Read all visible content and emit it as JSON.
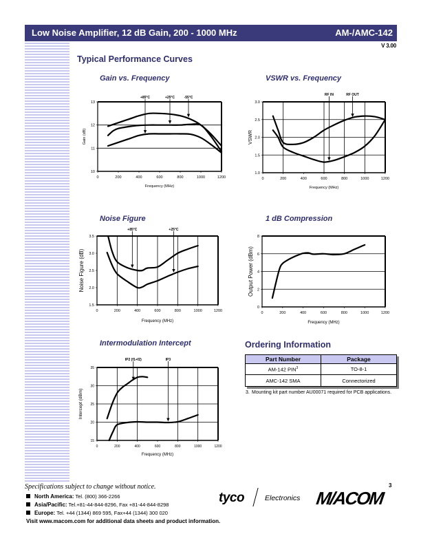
{
  "header": {
    "title": "Low Noise Amplifier, 12 dB Gain, 200 - 1000 MHz",
    "part": "AM-/AMC-142",
    "version": "V 3.00"
  },
  "section_title": "Typical Performance Curves",
  "colors": {
    "header_bg": "#3a3a7a",
    "title_text": "#2e2e6e",
    "stripe": "#c8c8f0",
    "table_header_bg": "#c8c8f0"
  },
  "chart_data": [
    {
      "id": "gain",
      "type": "line",
      "title": "Gain vs. Frequency",
      "xlabel": "Frequency (MHz)",
      "ylabel": "Gain (dB)",
      "xlim": [
        0,
        1200
      ],
      "ylim": [
        10,
        13
      ],
      "xticks": [
        "0",
        "200",
        "400",
        "600",
        "800",
        "1000",
        "1200"
      ],
      "yticks": [
        "10",
        "11",
        "12",
        "13"
      ],
      "grid_h": [
        11,
        12
      ],
      "grid_v": [],
      "series": [
        {
          "name": "-55°C",
          "x": [
            100,
            200,
            300,
            400,
            500,
            600,
            700,
            800,
            900,
            1000,
            1100,
            1200
          ],
          "y": [
            11.95,
            12.1,
            12.25,
            12.4,
            12.5,
            12.5,
            12.47,
            12.4,
            12.25,
            12.0,
            11.6,
            11.1
          ]
        },
        {
          "name": "+25°C",
          "x": [
            100,
            150,
            200,
            300,
            400,
            500,
            600,
            700,
            800,
            900,
            1000,
            1100,
            1200
          ],
          "y": [
            11.55,
            11.75,
            11.85,
            11.93,
            11.98,
            12.0,
            12.0,
            12.0,
            12.0,
            12.03,
            12.0,
            11.5,
            10.85
          ]
        },
        {
          "name": "+85°C",
          "x": [
            100,
            200,
            300,
            400,
            500,
            600,
            700,
            800,
            900,
            1000,
            1100,
            1200
          ],
          "y": [
            11.1,
            11.25,
            11.4,
            11.55,
            11.62,
            11.62,
            11.62,
            11.62,
            11.6,
            11.45,
            11.15,
            10.8
          ]
        }
      ],
      "annotations": [
        {
          "text": "+85°C",
          "x": 460,
          "y": 11.6
        },
        {
          "text": "+25°C",
          "x": 700,
          "y": 12.02
        },
        {
          "text": "-55°C",
          "x": 880,
          "y": 12.3
        }
      ]
    },
    {
      "id": "vswr",
      "type": "line",
      "title": "VSWR vs. Frequency",
      "xlabel": "Frequency (MHz)",
      "ylabel": "VSWR",
      "xlim": [
        0,
        1200
      ],
      "ylim": [
        1.0,
        3.0
      ],
      "xticks": [
        "0",
        "200",
        "400",
        "600",
        "800",
        "1000",
        "1200"
      ],
      "yticks": [
        "1.0",
        "1.5",
        "2.0",
        "2.5",
        "3.0"
      ],
      "grid_h": [
        1.5,
        2.0,
        2.5
      ],
      "grid_v": [
        200,
        600,
        800,
        1000
      ],
      "series": [
        {
          "name": "RF OUT",
          "x": [
            100,
            150,
            200,
            300,
            400,
            500,
            600,
            700,
            800,
            900,
            1000,
            1100,
            1200
          ],
          "y": [
            2.6,
            2.2,
            1.85,
            1.8,
            1.85,
            2.0,
            2.2,
            2.35,
            2.48,
            2.57,
            2.6,
            2.58,
            2.5
          ]
        },
        {
          "name": "RF IN",
          "x": [
            100,
            150,
            200,
            300,
            400,
            500,
            600,
            700,
            800,
            900,
            1000,
            1100,
            1200
          ],
          "y": [
            2.2,
            2.0,
            1.72,
            1.57,
            1.47,
            1.37,
            1.3,
            1.35,
            1.45,
            1.57,
            1.75,
            2.05,
            2.5
          ]
        }
      ],
      "annotations": [
        {
          "text": "RF IN",
          "x": 650,
          "y": 1.32
        },
        {
          "text": "RF OUT",
          "x": 880,
          "y": 2.55
        }
      ]
    },
    {
      "id": "nf",
      "type": "line",
      "title": "Noise Figure",
      "xlabel": "Frequency (MHz)",
      "ylabel": "Noise Figure (dB)",
      "xlim": [
        0,
        1200
      ],
      "ylim": [
        1.5,
        3.5
      ],
      "xticks": [
        "0",
        "200",
        "400",
        "600",
        "800",
        "1000",
        "1200"
      ],
      "yticks": [
        "1.5",
        "2.0",
        "2.5",
        "3.0",
        "3.5"
      ],
      "grid_h": [],
      "grid_v": [
        200,
        400,
        600,
        800,
        1000
      ],
      "series": [
        {
          "name": "+85°C",
          "x": [
            110,
            150,
            200,
            300,
            400,
            450,
            500,
            600,
            700,
            800,
            900,
            1000
          ],
          "y": [
            3.5,
            3.05,
            2.75,
            2.58,
            2.5,
            2.5,
            2.57,
            2.6,
            2.8,
            3.0,
            3.12,
            3.22
          ]
        },
        {
          "name": "+25°C",
          "x": [
            100,
            150,
            200,
            300,
            400,
            450,
            500,
            600,
            700,
            800,
            900,
            1000
          ],
          "y": [
            3.02,
            2.65,
            2.4,
            2.18,
            2.0,
            2.02,
            2.1,
            2.2,
            2.33,
            2.45,
            2.55,
            2.62
          ]
        }
      ],
      "annotations": [
        {
          "text": "+85°C",
          "x": 350,
          "y": 2.55
        },
        {
          "text": "+25°C",
          "x": 760,
          "y": 2.42
        }
      ]
    },
    {
      "id": "p1db",
      "type": "line",
      "title": "1 dB Compression",
      "xlabel": "Frequency (MHz)",
      "ylabel": "Output Power (dBm)",
      "xlim": [
        0,
        1200
      ],
      "ylim": [
        0,
        8
      ],
      "xticks": [
        "0",
        "200",
        "400",
        "600",
        "800",
        "1000",
        "1200"
      ],
      "yticks": [
        "0",
        "2",
        "4",
        "6",
        "8"
      ],
      "grid_h": [
        2,
        4,
        6
      ],
      "grid_v": [],
      "series": [
        {
          "name": "P1dB",
          "x": [
            100,
            130,
            170,
            200,
            250,
            300,
            350,
            400,
            450,
            500,
            600,
            700,
            800,
            900,
            1000
          ],
          "y": [
            1.0,
            2.5,
            4.3,
            4.9,
            5.3,
            5.6,
            5.85,
            6.05,
            6.1,
            5.95,
            6.0,
            5.9,
            6.0,
            6.5,
            7.0
          ]
        }
      ],
      "annotations": []
    },
    {
      "id": "ip",
      "type": "line",
      "title": "Intermodulation Intercept",
      "xlabel": "Frequency (MHz)",
      "ylabel": "Intercept (dBm)",
      "xlim": [
        0,
        1200
      ],
      "ylim": [
        15,
        35
      ],
      "xticks": [
        "0",
        "200",
        "400",
        "600",
        "800",
        "1000",
        "1200"
      ],
      "yticks": [
        "15",
        "20",
        "25",
        "30",
        "35"
      ],
      "grid_h": [
        20,
        25,
        30
      ],
      "grid_v": [
        200,
        400,
        800,
        1000
      ],
      "series": [
        {
          "name": "IP2 (f1+f2)",
          "x": [
            100,
            150,
            200,
            250,
            300,
            350,
            400,
            450,
            500
          ],
          "y": [
            21,
            25,
            28,
            29.5,
            30.5,
            31.5,
            32.3,
            32.5,
            32.3
          ]
        },
        {
          "name": "IP3",
          "x": [
            120,
            160,
            200,
            300,
            400,
            500,
            600,
            700,
            800,
            900,
            1000
          ],
          "y": [
            15,
            17.5,
            19.3,
            19.9,
            20.1,
            20.0,
            20.0,
            19.9,
            20.1,
            21.0,
            22.0
          ]
        }
      ],
      "annotations": [
        {
          "text": "IP2 (f1+f2)",
          "x": 360,
          "y": 31.3
        },
        {
          "text": "IP3",
          "x": 705,
          "y": 20.0
        }
      ]
    }
  ],
  "ordering": {
    "title": "Ordering Information",
    "headers": [
      "Part Number",
      "Package"
    ],
    "rows": [
      {
        "part": "AM-142  PIN",
        "sup": "3",
        "package": "TO-8-1"
      },
      {
        "part": "AMC-142 SMA",
        "sup": "",
        "package": "Connectorized"
      }
    ],
    "footnote_num": "3.",
    "footnote": "Mounting kit part number AU00071 required for PCB applications."
  },
  "footer": {
    "spec_note": "Specifications subject to change without notice.",
    "contacts": [
      {
        "region": "North America:",
        "info": "Tel. (800) 366-2266"
      },
      {
        "region": "Asia/Pacific:",
        "info": "Tel.+81-44-844-8296,  Fax +81-44-844-8298"
      },
      {
        "region": "Europe:",
        "info": "Tel. +44 (1344) 869 595,  Fax+44 (1344) 300 020"
      }
    ],
    "visit": "Visit www.macom.com for additional data sheets and product information.",
    "page_number": "3",
    "logo_tyco": "tyco",
    "logo_electronics": "Electronics",
    "logo_macom": "M/ACOM"
  }
}
